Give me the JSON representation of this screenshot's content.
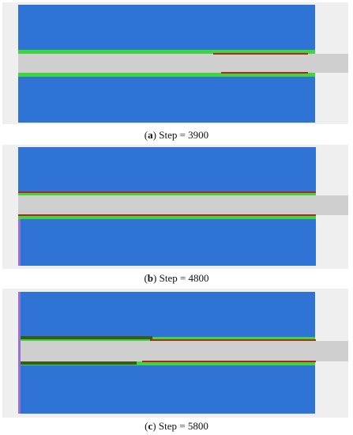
{
  "panels": [
    {
      "label": "a",
      "caption": "Step = 3900"
    },
    {
      "label": "b",
      "caption": "Step = 4800"
    },
    {
      "label": "c",
      "caption": "Step = 5800"
    }
  ],
  "colors": {
    "background": "#efefef",
    "blue_region": "#2f74d4",
    "green_band": "#3fd63b",
    "grey_strip": "#cfcfcf",
    "red_damage": "#b3261e",
    "dark_green_debris": "#3a5a1a",
    "cyan_edge": "#7de3e0",
    "violet_edge": "#9a6fd8"
  }
}
